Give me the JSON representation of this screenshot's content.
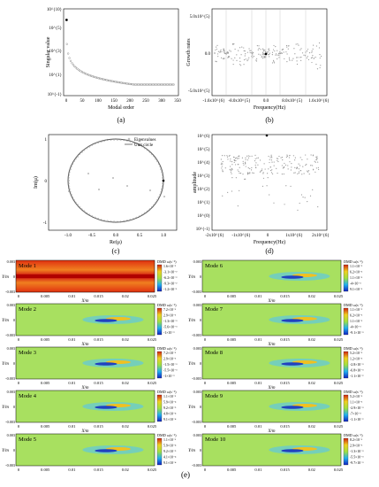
{
  "panel_labels": {
    "a": "(a)",
    "b": "(b)",
    "c": "(c)",
    "d": "(d)",
    "e": "(e)"
  },
  "chart_data": [
    {
      "panel": "a",
      "type": "scatter",
      "xlabel": "Modal order",
      "ylabel": "Singular value",
      "xlim": [
        0,
        350
      ],
      "ylim_log10": [
        -1,
        10
      ],
      "y_scale": "log",
      "x_ticks": [
        "0",
        "50",
        "100",
        "150",
        "200",
        "250",
        "300",
        "350"
      ],
      "y_ticks": [
        "10^{-1}",
        "10^{1}",
        "10^{3}",
        "10^{5}",
        "10^{10}"
      ],
      "highlight_point": {
        "x": 1,
        "y_log10": 8.6
      },
      "series_desc": "decaying singular values, modes 2–340"
    },
    {
      "panel": "b",
      "type": "scatter",
      "xlabel": "Frequency(Hz)",
      "ylabel": "Growth rates",
      "x_ticks": [
        "-1.6x10^{6}",
        "-8.0x10^{5}",
        "0.0",
        "8.0x10^{5}",
        "1.6x10^{6}"
      ],
      "y_ticks": [
        "-5.0x10^{5}",
        "0.0",
        "5.0x10^{5}"
      ],
      "highlight_point": {
        "x": 0,
        "y": 0
      }
    },
    {
      "panel": "c",
      "type": "scatter",
      "xlabel": "Re(μ)",
      "ylabel": "Im(μ)",
      "x_ticks": [
        "-1.0",
        "-0.5",
        "0.0",
        "0.5",
        "1.0"
      ],
      "y_ticks": [
        "-1",
        "0",
        "1"
      ],
      "legend": [
        "Eigenvalues",
        "Unit circle"
      ]
    },
    {
      "panel": "d",
      "type": "scatter",
      "xlabel": "Frequency(Hz)",
      "ylabel": "amplitude",
      "x_ticks": [
        "-2x10^{6}",
        "-1x10^{6}",
        "0",
        "1x10^{6}",
        "2x10^{6}"
      ],
      "y_ticks": [
        "10^{-1}",
        "10^{0}",
        "10^{1}",
        "10^{2}",
        "10^{3}",
        "10^{4}",
        "10^{5}",
        "10^{6}"
      ],
      "highlight_point": {
        "x": 0,
        "y_log10": 5.4
      }
    }
  ],
  "modes": {
    "xlabel": "X/m",
    "ylabel": "Y/m",
    "x_ticks": [
      "0",
      "0.005",
      "0.01",
      "0.015",
      "0.02",
      "0.025"
    ],
    "y_ticks": [
      "0.003",
      "0",
      "-0.003"
    ],
    "colorbar_title": "DMD ω(s⁻¹)",
    "items": [
      {
        "title": "Mode 1",
        "cb": [
          "1.6×10⁻²",
          "-3.1×10⁻²",
          "-6.2×10⁻²",
          "-9.3×10⁻²",
          "-1.2×10⁻¹"
        ]
      },
      {
        "title": "Mode 6",
        "cb": [
          "1.1×10⁻²",
          "6.2×10⁻³",
          "1.1×10⁻³",
          "-4×10⁻³",
          "9.1×10⁻³"
        ]
      },
      {
        "title": "Mode 2",
        "cb": [
          "7.2×10⁻³",
          "2.9×10⁻³",
          "-1.3×10⁻³",
          "-5.6×10⁻³",
          "-1×10⁻²"
        ]
      },
      {
        "title": "Mode 7",
        "cb": [
          "1.1×10⁻²",
          "6.2×10⁻³",
          "1.1×10⁻³",
          "-4×10⁻³",
          "-9.1×10⁻³"
        ]
      },
      {
        "title": "Mode 3",
        "cb": [
          "7.2×10⁻³",
          "2.9×10⁻³",
          "-1.5×10⁻³",
          "-5.5×10⁻³",
          "-1×10⁻²"
        ]
      },
      {
        "title": "Mode 8",
        "cb": [
          "5.2×10⁻³",
          "1.2×10⁻³",
          "-2.8×10⁻³",
          "-6.8×10⁻³",
          "-1.1×10⁻²"
        ]
      },
      {
        "title": "Mode 4",
        "cb": [
          "1.1×10⁻³",
          "5.9×10⁻⁴",
          "9.2×10⁻⁵",
          "4.8×10⁻⁴",
          "9.1×10⁻⁴"
        ]
      },
      {
        "title": "Mode 9",
        "cb": [
          "5.2×10⁻³",
          "1.1×10⁻³",
          "-2.9×10⁻³",
          "-7×10⁻³",
          "-1.1×10⁻²"
        ]
      },
      {
        "title": "Mode 5",
        "cb": [
          "1.1×10⁻³",
          "5.9×10⁻⁴",
          "9.2×10⁻⁵",
          "4.1×10⁻⁴",
          "9.1×10⁻⁴"
        ]
      },
      {
        "title": "Mode 10",
        "cb": [
          "8.2×10⁻³",
          "2.9×10⁻³",
          "-1.3×10⁻³",
          "-5.5×10⁻³",
          "-9.7×10⁻³"
        ]
      }
    ]
  }
}
